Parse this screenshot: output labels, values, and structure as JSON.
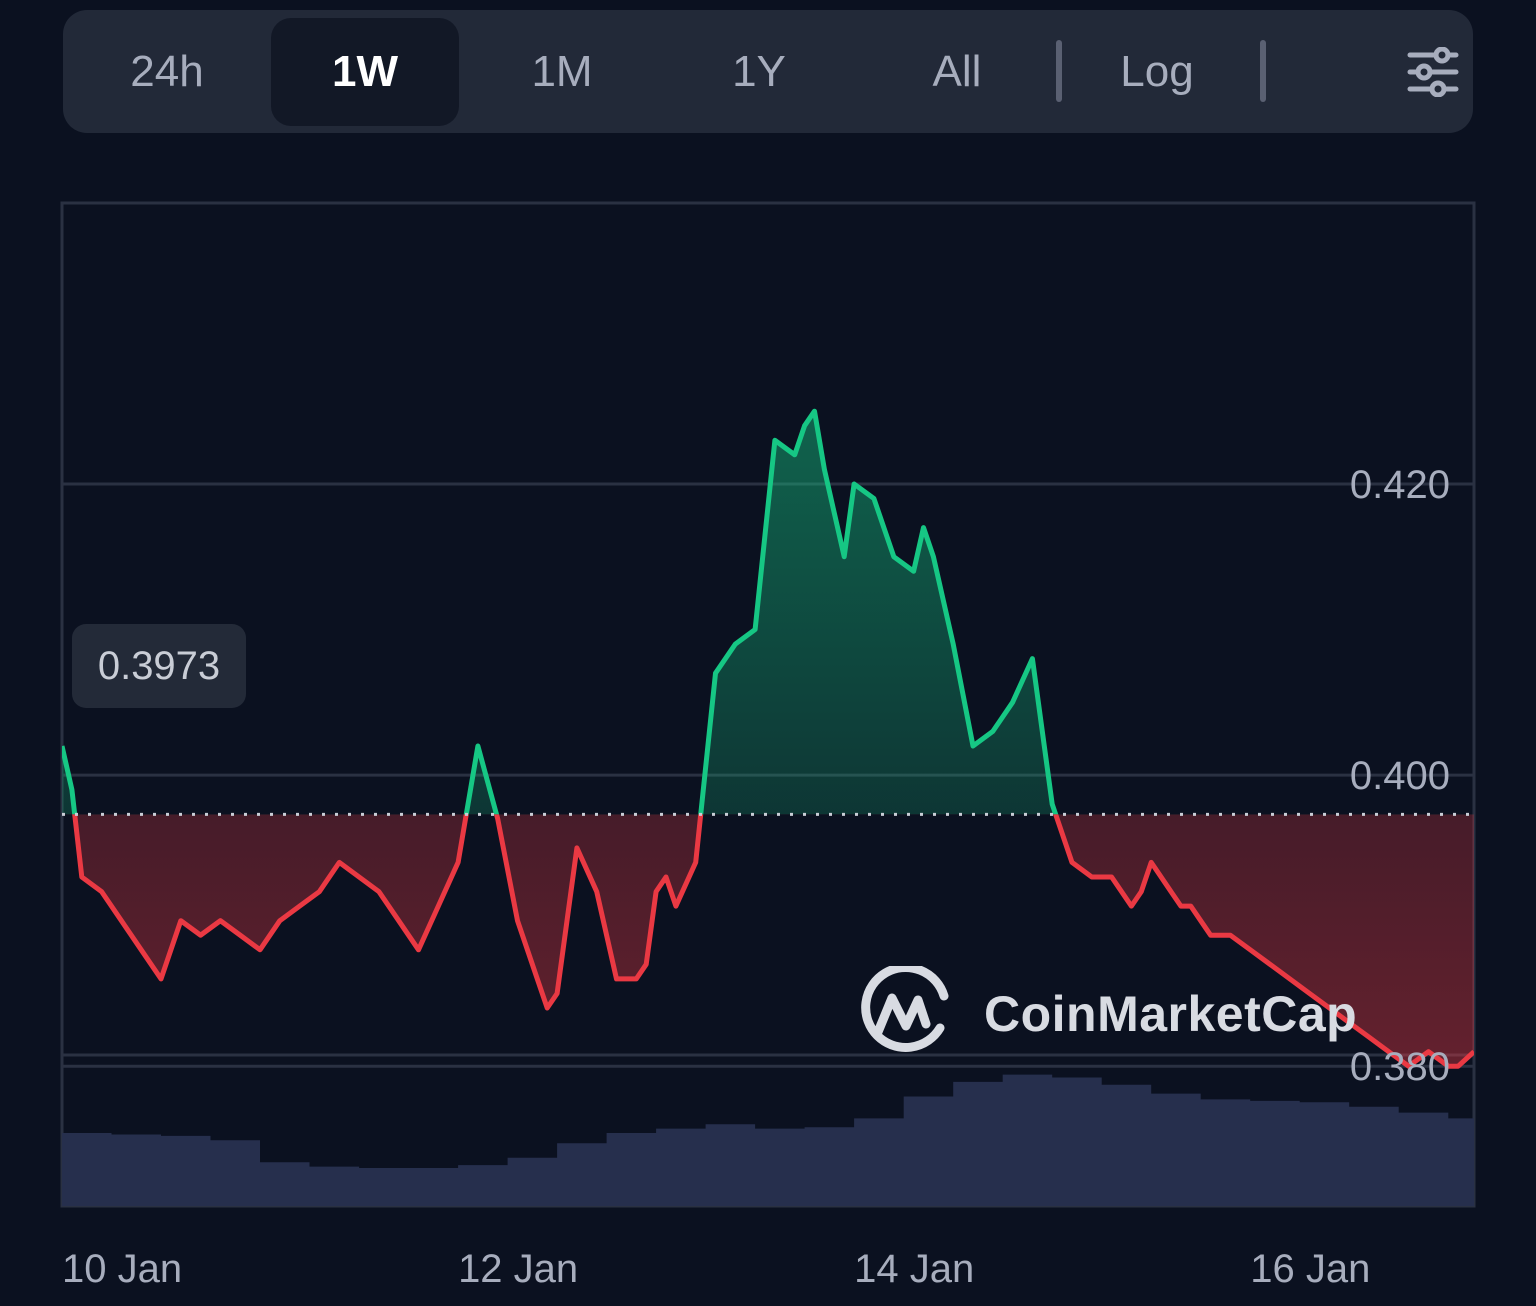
{
  "toolbar": {
    "ranges": [
      "24h",
      "1W",
      "1M",
      "1Y",
      "All"
    ],
    "active_range": "1W",
    "log_label": "Log",
    "settings_icon": "sliders-icon"
  },
  "reference_price": "0.3973",
  "watermark": {
    "text": "CoinMarketCap",
    "logo_icon": "coinmarketcap-logo-icon"
  },
  "colors": {
    "up": "#16c784",
    "down": "#ea3943",
    "volume": "#262f4d",
    "background": "#0b1120"
  },
  "chart_data": {
    "type": "line",
    "title": "",
    "xlabel": "",
    "ylabel": "",
    "x_ticks": [
      "10 Jan",
      "12 Jan",
      "14 Jan",
      "16 Jan"
    ],
    "y_ticks": [
      "0.380",
      "0.400",
      "0.420"
    ],
    "y_tick_values": [
      0.38,
      0.4,
      0.42
    ],
    "ylim": [
      0.3704,
      0.4393
    ],
    "xlim_days": [
      10.0,
      17.13
    ],
    "reference_line": 0.3973,
    "series": [
      {
        "x": [
          10.0,
          10.05,
          10.1,
          10.2,
          10.3,
          10.4,
          10.5,
          10.6,
          10.7,
          10.8,
          10.9,
          11.0,
          11.1,
          11.2,
          11.3,
          11.4,
          11.5,
          11.6,
          11.7,
          11.8,
          11.9,
          12.0,
          12.1,
          12.2,
          12.3,
          12.4,
          12.45,
          12.5,
          12.6,
          12.7,
          12.8,
          12.9,
          12.95,
          13.0,
          13.05,
          13.1,
          13.2,
          13.3,
          13.4,
          13.5,
          13.6,
          13.7,
          13.75,
          13.8,
          13.85,
          13.9,
          13.95,
          14.0,
          14.1,
          14.2,
          14.3,
          14.35,
          14.4,
          14.5,
          14.6,
          14.7,
          14.75,
          14.8,
          14.9,
          15.0,
          15.1,
          15.2,
          15.3,
          15.4,
          15.45,
          15.5,
          15.6,
          15.65,
          15.7,
          15.75,
          15.8,
          15.9,
          16.0,
          16.1,
          16.2,
          16.3,
          16.4,
          16.5,
          16.6,
          16.7,
          16.8,
          16.9,
          17.0,
          17.05,
          17.13
        ],
        "y": [
          0.402,
          0.399,
          0.393,
          0.392,
          0.39,
          0.388,
          0.386,
          0.39,
          0.389,
          0.39,
          0.389,
          0.388,
          0.39,
          0.391,
          0.392,
          0.394,
          0.393,
          0.392,
          0.39,
          0.388,
          0.391,
          0.394,
          0.402,
          0.397,
          0.39,
          0.386,
          0.384,
          0.385,
          0.395,
          0.392,
          0.386,
          0.386,
          0.387,
          0.392,
          0.393,
          0.391,
          0.394,
          0.407,
          0.409,
          0.41,
          0.423,
          0.422,
          0.424,
          0.425,
          0.421,
          0.418,
          0.415,
          0.42,
          0.419,
          0.415,
          0.414,
          0.417,
          0.415,
          0.409,
          0.402,
          0.403,
          0.404,
          0.405,
          0.408,
          0.398,
          0.394,
          0.393,
          0.393,
          0.391,
          0.392,
          0.394,
          0.392,
          0.391,
          0.391,
          0.39,
          0.389,
          0.389,
          0.388,
          0.387,
          0.386,
          0.385,
          0.384,
          0.383,
          0.382,
          0.381,
          0.38,
          0.381,
          0.38,
          0.38,
          0.381
        ]
      }
    ],
    "volume": {
      "x": [
        10.0,
        10.25,
        10.5,
        10.75,
        11.0,
        11.25,
        11.5,
        11.75,
        12.0,
        12.25,
        12.5,
        12.75,
        13.0,
        13.25,
        13.5,
        13.75,
        14.0,
        14.25,
        14.5,
        14.75,
        15.0,
        15.25,
        15.5,
        15.75,
        16.0,
        16.25,
        16.5,
        16.75,
        17.0,
        17.13
      ],
      "values": [
        0.5,
        0.49,
        0.48,
        0.45,
        0.3,
        0.27,
        0.26,
        0.26,
        0.28,
        0.33,
        0.43,
        0.5,
        0.53,
        0.56,
        0.53,
        0.54,
        0.6,
        0.75,
        0.85,
        0.9,
        0.88,
        0.83,
        0.77,
        0.73,
        0.72,
        0.71,
        0.68,
        0.64,
        0.6,
        0.55
      ]
    }
  }
}
